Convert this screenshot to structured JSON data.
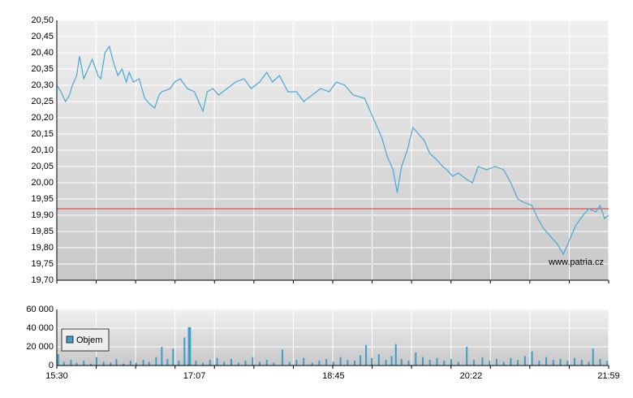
{
  "chart_data": [
    {
      "type": "line",
      "xlim": [
        "15:30",
        "21:59"
      ],
      "ylim": [
        19.7,
        20.5
      ],
      "yticks": [
        {
          "value": 19.7,
          "label": "19,70"
        },
        {
          "value": 19.75,
          "label": "19,75"
        },
        {
          "value": 19.8,
          "label": "19,80"
        },
        {
          "value": 19.85,
          "label": "19,85"
        },
        {
          "value": 19.9,
          "label": "19,90"
        },
        {
          "value": 19.95,
          "label": "19,95"
        },
        {
          "value": 20.0,
          "label": "20,00"
        },
        {
          "value": 20.05,
          "label": "20,05"
        },
        {
          "value": 20.1,
          "label": "20,10"
        },
        {
          "value": 20.15,
          "label": "20,15"
        },
        {
          "value": 20.2,
          "label": "20,20"
        },
        {
          "value": 20.25,
          "label": "20,25"
        },
        {
          "value": 20.3,
          "label": "20,30"
        },
        {
          "value": 20.35,
          "label": "20,35"
        },
        {
          "value": 20.4,
          "label": "20,40"
        },
        {
          "value": 20.45,
          "label": "20,45"
        },
        {
          "value": 20.5,
          "label": "20,50"
        }
      ],
      "grid": true,
      "reference_line": {
        "value": 19.92,
        "color": "#e03030"
      },
      "watermark": "www.patria.cz",
      "x": [
        "15:30",
        "15:33",
        "15:36",
        "15:39",
        "15:41",
        "15:44",
        "15:46",
        "15:49",
        "15:52",
        "15:55",
        "15:59",
        "16:01",
        "16:04",
        "16:07",
        "16:10",
        "16:13",
        "16:16",
        "16:19",
        "16:21",
        "16:24",
        "16:28",
        "16:32",
        "16:36",
        "16:39",
        "16:42",
        "16:44",
        "16:50",
        "16:53",
        "16:57",
        "17:02",
        "17:07",
        "17:10",
        "17:13",
        "17:16",
        "17:20",
        "17:24",
        "17:30",
        "17:36",
        "17:42",
        "17:47",
        "17:53",
        "17:58",
        "18:02",
        "18:07",
        "18:13",
        "18:19",
        "18:24",
        "18:30",
        "18:36",
        "18:42",
        "18:47",
        "18:53",
        "18:59",
        "19:07",
        "19:11",
        "19:15",
        "19:19",
        "19:23",
        "19:27",
        "19:30",
        "19:33",
        "19:37",
        "19:41",
        "19:45",
        "19:49",
        "19:53",
        "19:58",
        "20:02",
        "20:05",
        "20:09",
        "20:13",
        "20:19",
        "20:23",
        "20:27",
        "20:33",
        "20:39",
        "20:45",
        "20:50",
        "20:55",
        "20:59",
        "21:05",
        "21:09",
        "21:13",
        "21:19",
        "21:23",
        "21:27",
        "21:32",
        "21:36",
        "21:41",
        "21:45",
        "21:50",
        "21:53",
        "21:56",
        "21:59"
      ],
      "series": [
        {
          "color": "#4aa7d4",
          "values": [
            20.3,
            20.28,
            20.25,
            20.27,
            20.3,
            20.33,
            20.39,
            20.32,
            20.35,
            20.38,
            20.33,
            20.32,
            20.4,
            20.42,
            20.37,
            20.33,
            20.35,
            20.31,
            20.34,
            20.31,
            20.32,
            20.26,
            20.24,
            20.23,
            20.27,
            20.28,
            20.29,
            20.31,
            20.32,
            20.29,
            20.28,
            20.25,
            20.22,
            20.28,
            20.29,
            20.27,
            20.29,
            20.31,
            20.32,
            20.29,
            20.31,
            20.34,
            20.31,
            20.33,
            20.28,
            20.28,
            20.25,
            20.27,
            20.29,
            20.28,
            20.31,
            20.3,
            20.27,
            20.26,
            20.22,
            20.18,
            20.14,
            20.08,
            20.04,
            19.97,
            20.05,
            20.1,
            20.17,
            20.15,
            20.13,
            20.09,
            20.07,
            20.05,
            20.04,
            20.02,
            20.03,
            20.01,
            20.0,
            20.05,
            20.04,
            20.05,
            20.04,
            20.0,
            19.95,
            19.94,
            19.93,
            19.89,
            19.86,
            19.83,
            19.81,
            19.78,
            19.83,
            19.87,
            19.9,
            19.92,
            19.91,
            19.93,
            19.89,
            19.9
          ]
        }
      ]
    },
    {
      "type": "bar",
      "xlim": [
        "15:30",
        "21:59"
      ],
      "xticks": [
        "15:30",
        "17:07",
        "18:45",
        "20:22",
        "21:59"
      ],
      "ylim": [
        0,
        60000
      ],
      "yticks": [
        {
          "value": 0,
          "label": "0"
        },
        {
          "value": 20000,
          "label": "20 000"
        },
        {
          "value": 40000,
          "label": "40 000"
        },
        {
          "value": 60000,
          "label": "60 000"
        }
      ],
      "grid": true,
      "x": [
        "15:31",
        "15:35",
        "15:40",
        "15:44",
        "15:49",
        "15:54",
        "15:58",
        "16:03",
        "16:08",
        "16:12",
        "16:17",
        "16:22",
        "16:26",
        "16:31",
        "16:35",
        "16:40",
        "16:44",
        "16:48",
        "16:52",
        "16:56",
        "17:00",
        "17:03",
        "17:04",
        "17:08",
        "17:13",
        "17:18",
        "17:23",
        "17:28",
        "17:33",
        "17:38",
        "17:43",
        "17:48",
        "17:53",
        "17:58",
        "18:03",
        "18:09",
        "18:14",
        "18:19",
        "18:24",
        "18:30",
        "18:35",
        "18:40",
        "18:45",
        "18:50",
        "18:55",
        "19:00",
        "19:04",
        "19:08",
        "19:12",
        "19:17",
        "19:22",
        "19:26",
        "19:29",
        "19:33",
        "19:38",
        "19:43",
        "19:48",
        "19:53",
        "19:58",
        "20:03",
        "20:08",
        "20:13",
        "20:19",
        "20:24",
        "20:30",
        "20:35",
        "20:40",
        "20:45",
        "20:50",
        "20:55",
        "21:00",
        "21:05",
        "21:10",
        "21:15",
        "21:20",
        "21:25",
        "21:30",
        "21:35",
        "21:40",
        "21:45",
        "21:48",
        "21:53",
        "21:58"
      ],
      "series": [
        {
          "name": "Objem",
          "color": "#3d9cc9",
          "values": [
            12000,
            4000,
            6000,
            3000,
            5000,
            2000,
            9000,
            4000,
            3000,
            7000,
            2000,
            5000,
            3000,
            6000,
            4000,
            9000,
            20000,
            7000,
            18000,
            5000,
            30000,
            41000,
            41000,
            5000,
            3000,
            6000,
            8000,
            4000,
            7000,
            3000,
            5000,
            9000,
            4000,
            6000,
            3000,
            17000,
            4000,
            6000,
            8000,
            3000,
            5000,
            7000,
            4000,
            9000,
            6000,
            5000,
            11000,
            22000,
            8000,
            12000,
            6000,
            10000,
            23000,
            7000,
            5000,
            14000,
            9000,
            6000,
            8000,
            5000,
            7000,
            4000,
            20000,
            6000,
            9000,
            5000,
            7000,
            4000,
            8000,
            6000,
            10000,
            15000,
            5000,
            9000,
            6000,
            7000,
            5000,
            8000,
            6000,
            4000,
            18000,
            7000,
            5000
          ]
        }
      ]
    }
  ]
}
